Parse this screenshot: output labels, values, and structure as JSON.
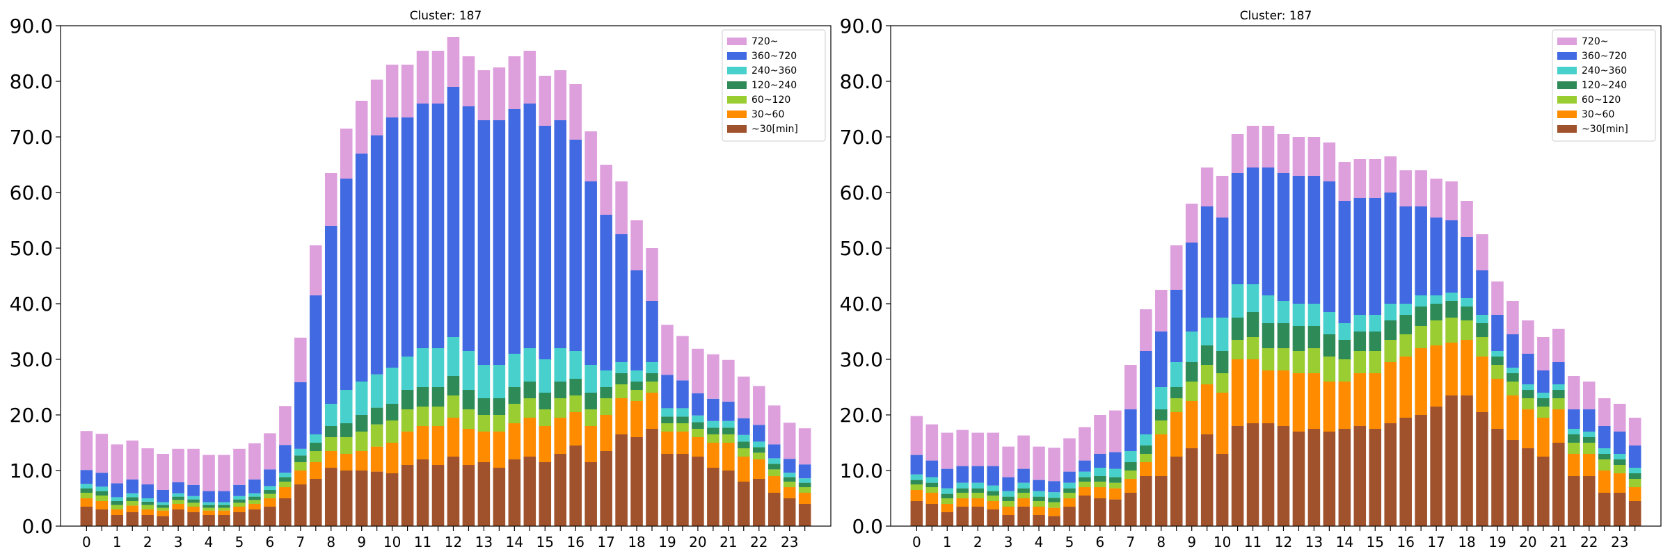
{
  "chart_data": [
    {
      "type": "bar",
      "stacked": true,
      "title": "Cluster: 187",
      "xlabel": "",
      "ylabel": "",
      "ylim": [
        0,
        90
      ],
      "yticks": [
        "0.0",
        "10.0",
        "20.0",
        "30.0",
        "40.0",
        "50.0",
        "60.0",
        "70.0",
        "80.0",
        "90.0"
      ],
      "xticks": [
        "0",
        "1",
        "2",
        "3",
        "4",
        "5",
        "6",
        "7",
        "8",
        "9",
        "10",
        "11",
        "12",
        "13",
        "14",
        "15",
        "16",
        "17",
        "18",
        "19",
        "20",
        "21",
        "22",
        "23"
      ],
      "grid": false,
      "legend_position": "top-right",
      "x": [
        0,
        0.5,
        1,
        1.5,
        2,
        2.5,
        3,
        3.5,
        4,
        4.5,
        5,
        5.5,
        6,
        6.5,
        7,
        7.5,
        8,
        8.5,
        9,
        9.5,
        10,
        10.5,
        11,
        11.5,
        12,
        12.5,
        13,
        13.5,
        14,
        14.5,
        15,
        15.5,
        16,
        16.5,
        17,
        17.5,
        18,
        18.5,
        19,
        19.5,
        20,
        20.5,
        21,
        21.5,
        22,
        22.5,
        23,
        23.5
      ],
      "series": [
        {
          "name": "~30[min]",
          "color": "#a0522d",
          "values": [
            3.5,
            3,
            2,
            2.5,
            2,
            1.8,
            3,
            2.5,
            2,
            2,
            2.5,
            3,
            3.5,
            5,
            7.5,
            8.5,
            10.5,
            10,
            10,
            9.8,
            9.5,
            11,
            12,
            11,
            12.5,
            11,
            11.5,
            10.5,
            12,
            12.5,
            11.5,
            13,
            14.5,
            11.5,
            13.5,
            16.5,
            16,
            17.5,
            13,
            13,
            12.5,
            10.5,
            10,
            8,
            8.5,
            6,
            5,
            4
          ]
        },
        {
          "name": "30~60",
          "color": "#ff8c00",
          "values": [
            1.5,
            1.5,
            1,
            1.2,
            1,
            1,
            1,
            1,
            0.8,
            0.8,
            1,
            1,
            1.5,
            2,
            2.5,
            3,
            3,
            3,
            3.5,
            4.5,
            5.5,
            6,
            6,
            7,
            7,
            6.5,
            5.5,
            6.5,
            6.5,
            7,
            6.5,
            6.5,
            6,
            6.5,
            6.5,
            6.5,
            6.5,
            6.5,
            4,
            4,
            3.5,
            4.5,
            5,
            4.5,
            3.5,
            3,
            2,
            2
          ]
        },
        {
          "name": "60~120",
          "color": "#9acd32",
          "values": [
            1,
            1,
            0.8,
            0.8,
            0.8,
            0.5,
            0.7,
            0.7,
            0.5,
            0.5,
            0.7,
            0.7,
            0.8,
            1,
            1.5,
            2,
            2.5,
            3,
            3.5,
            4,
            4,
            4,
            3.5,
            3.5,
            4,
            3.5,
            3,
            3,
            3.5,
            3.5,
            3,
            3.5,
            3,
            3,
            3,
            2.5,
            2,
            2,
            1.5,
            1.5,
            1.5,
            1.5,
            1.5,
            1.5,
            1.2,
            1.2,
            1,
            1
          ]
        },
        {
          "name": "120~240",
          "color": "#2e8b57",
          "values": [
            0.8,
            0.8,
            0.7,
            0.7,
            0.6,
            0.5,
            0.6,
            0.6,
            0.5,
            0.5,
            0.6,
            0.6,
            0.7,
            0.8,
            1.2,
            1.5,
            2,
            2.5,
            3,
            3,
            3,
            3.5,
            3.5,
            3.5,
            3.5,
            3.5,
            3,
            3,
            3,
            3,
            3,
            3,
            3,
            3,
            2,
            2,
            1.5,
            1.5,
            1.2,
            1.2,
            1.2,
            1.2,
            1.2,
            1.2,
            1,
            1,
            0.8,
            0.8
          ]
        },
        {
          "name": "240~360",
          "color": "#48d1cc",
          "values": [
            0.8,
            0.8,
            0.7,
            0.7,
            0.6,
            0.5,
            0.6,
            0.6,
            0.5,
            0.5,
            0.6,
            0.6,
            0.7,
            0.8,
            1.2,
            1.5,
            4,
            6,
            6,
            6,
            6.5,
            6,
            7,
            7,
            7,
            7,
            6,
            6,
            6,
            6,
            6,
            6,
            5,
            5,
            3,
            2,
            2,
            2,
            1.5,
            1.5,
            1.2,
            1.2,
            1.2,
            1.2,
            1,
            1,
            0.8,
            0.8
          ]
        },
        {
          "name": "360~720",
          "color": "#4169e1",
          "values": [
            2.5,
            2.5,
            2.5,
            2.5,
            2.5,
            2.2,
            2,
            2,
            2,
            2,
            2,
            2.5,
            3,
            5,
            12,
            25,
            32,
            38,
            41,
            43,
            45,
            43,
            44,
            44,
            45,
            44,
            44,
            44,
            44,
            44,
            42,
            41,
            38,
            33,
            28,
            23,
            18,
            11,
            6,
            5,
            4,
            4,
            3.5,
            3,
            3,
            2.5,
            2.5,
            2.5
          ]
        },
        {
          "name": "720~",
          "color": "#dda0dd",
          "values": [
            7,
            7,
            7,
            7,
            6.5,
            6.5,
            6,
            6.5,
            6.5,
            6.5,
            6.5,
            6.5,
            6.5,
            7,
            8,
            9,
            9.5,
            9,
            9.5,
            10,
            9.5,
            9.5,
            9.5,
            9.5,
            9,
            9,
            9,
            9.5,
            9.5,
            9.5,
            9,
            9,
            10,
            9,
            9,
            9.5,
            9,
            9.5,
            9,
            8,
            8,
            8,
            7.5,
            7.5,
            7,
            7,
            6.5,
            6.5
          ]
        }
      ],
      "legend_entries": [
        "720~",
        "360~720",
        "240~360",
        "120~240",
        "60~120",
        "30~60",
        "~30[min]"
      ]
    },
    {
      "type": "bar",
      "stacked": true,
      "title": "Cluster: 187",
      "xlabel": "",
      "ylabel": "",
      "ylim": [
        0,
        90
      ],
      "yticks": [
        "0.0",
        "10.0",
        "20.0",
        "30.0",
        "40.0",
        "50.0",
        "60.0",
        "70.0",
        "80.0",
        "90.0"
      ],
      "xticks": [
        "0",
        "1",
        "2",
        "3",
        "4",
        "5",
        "6",
        "7",
        "8",
        "9",
        "10",
        "11",
        "12",
        "13",
        "14",
        "15",
        "16",
        "17",
        "18",
        "19",
        "20",
        "21",
        "22",
        "23"
      ],
      "grid": false,
      "legend_position": "top-right",
      "x": [
        0,
        0.5,
        1,
        1.5,
        2,
        2.5,
        3,
        3.5,
        4,
        4.5,
        5,
        5.5,
        6,
        6.5,
        7,
        7.5,
        8,
        8.5,
        9,
        9.5,
        10,
        10.5,
        11,
        11.5,
        12,
        12.5,
        13,
        13.5,
        14,
        14.5,
        15,
        15.5,
        16,
        16.5,
        17,
        17.5,
        18,
        18.5,
        19,
        19.5,
        20,
        20.5,
        21,
        21.5,
        22,
        22.5,
        23,
        23.5
      ],
      "series": [
        {
          "name": "~30[min]",
          "color": "#a0522d",
          "values": [
            4.5,
            4,
            2.5,
            3.5,
            3.5,
            3,
            2,
            3.5,
            2,
            1.8,
            3.5,
            5.5,
            5,
            4.8,
            6,
            9,
            9,
            12.5,
            14,
            16.5,
            13,
            18,
            18.5,
            18.5,
            18,
            17,
            17.5,
            17,
            17.5,
            18,
            17.5,
            18.5,
            19.5,
            20,
            21.5,
            23.5,
            23.5,
            20.5,
            17.5,
            15.5,
            14,
            12.5,
            15,
            9,
            9,
            6,
            6,
            4.5
          ]
        },
        {
          "name": "30~60",
          "color": "#ff8c00",
          "values": [
            2,
            2,
            1.5,
            1.5,
            1.5,
            1.5,
            1.5,
            1.5,
            1.5,
            1.5,
            1.5,
            1.5,
            2,
            2,
            2.5,
            2.5,
            7.5,
            8,
            8.5,
            9,
            11,
            12,
            11.5,
            9.5,
            10,
            10.5,
            10,
            9,
            8.5,
            9.5,
            10,
            11,
            11,
            12,
            11,
            9.5,
            10,
            10,
            9,
            8,
            7,
            7,
            6,
            4,
            4,
            4,
            3.5,
            2.5
          ]
        },
        {
          "name": "60~120",
          "color": "#9acd32",
          "values": [
            1,
            1,
            1,
            1,
            1,
            1,
            1,
            1,
            1,
            1,
            1,
            1,
            1,
            1,
            1.5,
            1.5,
            2.5,
            2.5,
            3.5,
            3.5,
            3.5,
            3.5,
            4,
            4,
            4,
            4,
            4.5,
            4.5,
            4,
            4,
            4,
            4,
            4,
            4,
            4.5,
            4.5,
            3.5,
            3.5,
            2.5,
            2.5,
            2,
            2,
            2,
            2,
            2,
            2,
            1.5,
            1.5
          ]
        },
        {
          "name": "120~240",
          "color": "#2e8b57",
          "values": [
            0.8,
            0.8,
            0.8,
            0.8,
            0.8,
            0.8,
            0.8,
            0.8,
            0.8,
            0.8,
            0.8,
            0.8,
            1,
            1,
            1.5,
            1.5,
            2,
            2,
            3.5,
            3.5,
            4,
            4,
            4.5,
            4.5,
            4.5,
            4.5,
            4,
            4,
            3.5,
            3.5,
            3.5,
            3.5,
            3.5,
            3.5,
            3,
            3,
            2.5,
            2.5,
            1.5,
            1.5,
            1.5,
            1.5,
            1.5,
            1.5,
            1,
            1,
            1,
            1
          ]
        },
        {
          "name": "240~360",
          "color": "#48d1cc",
          "values": [
            1,
            1,
            1,
            1,
            1,
            1,
            1,
            1,
            1,
            1,
            1,
            1,
            1.5,
            1.5,
            2,
            2,
            4,
            4.5,
            5.5,
            5,
            6,
            6,
            5,
            5,
            4,
            4,
            4,
            4,
            3,
            3,
            3,
            3,
            2,
            2,
            1.5,
            1.5,
            1.5,
            1.5,
            1,
            1,
            1,
            1,
            1,
            1,
            1,
            1,
            1,
            1
          ]
        },
        {
          "name": "360~720",
          "color": "#4169e1",
          "values": [
            3.5,
            3,
            3.5,
            3,
            3,
            3.5,
            2.5,
            2.5,
            2,
            2,
            2,
            2,
            2.5,
            3,
            7.5,
            15,
            10,
            13,
            16,
            20,
            18,
            20,
            21,
            23,
            23,
            23,
            23,
            23.5,
            22,
            21,
            21,
            20,
            17.5,
            16,
            14,
            13,
            11,
            8,
            6.5,
            6,
            5.5,
            4,
            4,
            3.5,
            4,
            4,
            4,
            4
          ]
        },
        {
          "name": "720~",
          "color": "#dda0dd",
          "values": [
            7,
            6.5,
            6.5,
            6.5,
            6,
            6,
            5.5,
            6,
            6,
            6,
            6,
            6,
            7,
            7.5,
            8,
            7.5,
            7.5,
            8,
            7,
            7,
            7.5,
            7,
            7.5,
            7.5,
            7,
            7,
            7,
            7,
            7,
            7,
            7,
            6.5,
            6.5,
            6.5,
            7,
            7,
            6.5,
            6.5,
            6,
            6,
            6,
            6,
            6,
            6,
            5,
            5,
            5,
            5
          ]
        }
      ],
      "legend_entries": [
        "720~",
        "360~720",
        "240~360",
        "120~240",
        "60~120",
        "30~60",
        "~30[min]"
      ]
    }
  ]
}
